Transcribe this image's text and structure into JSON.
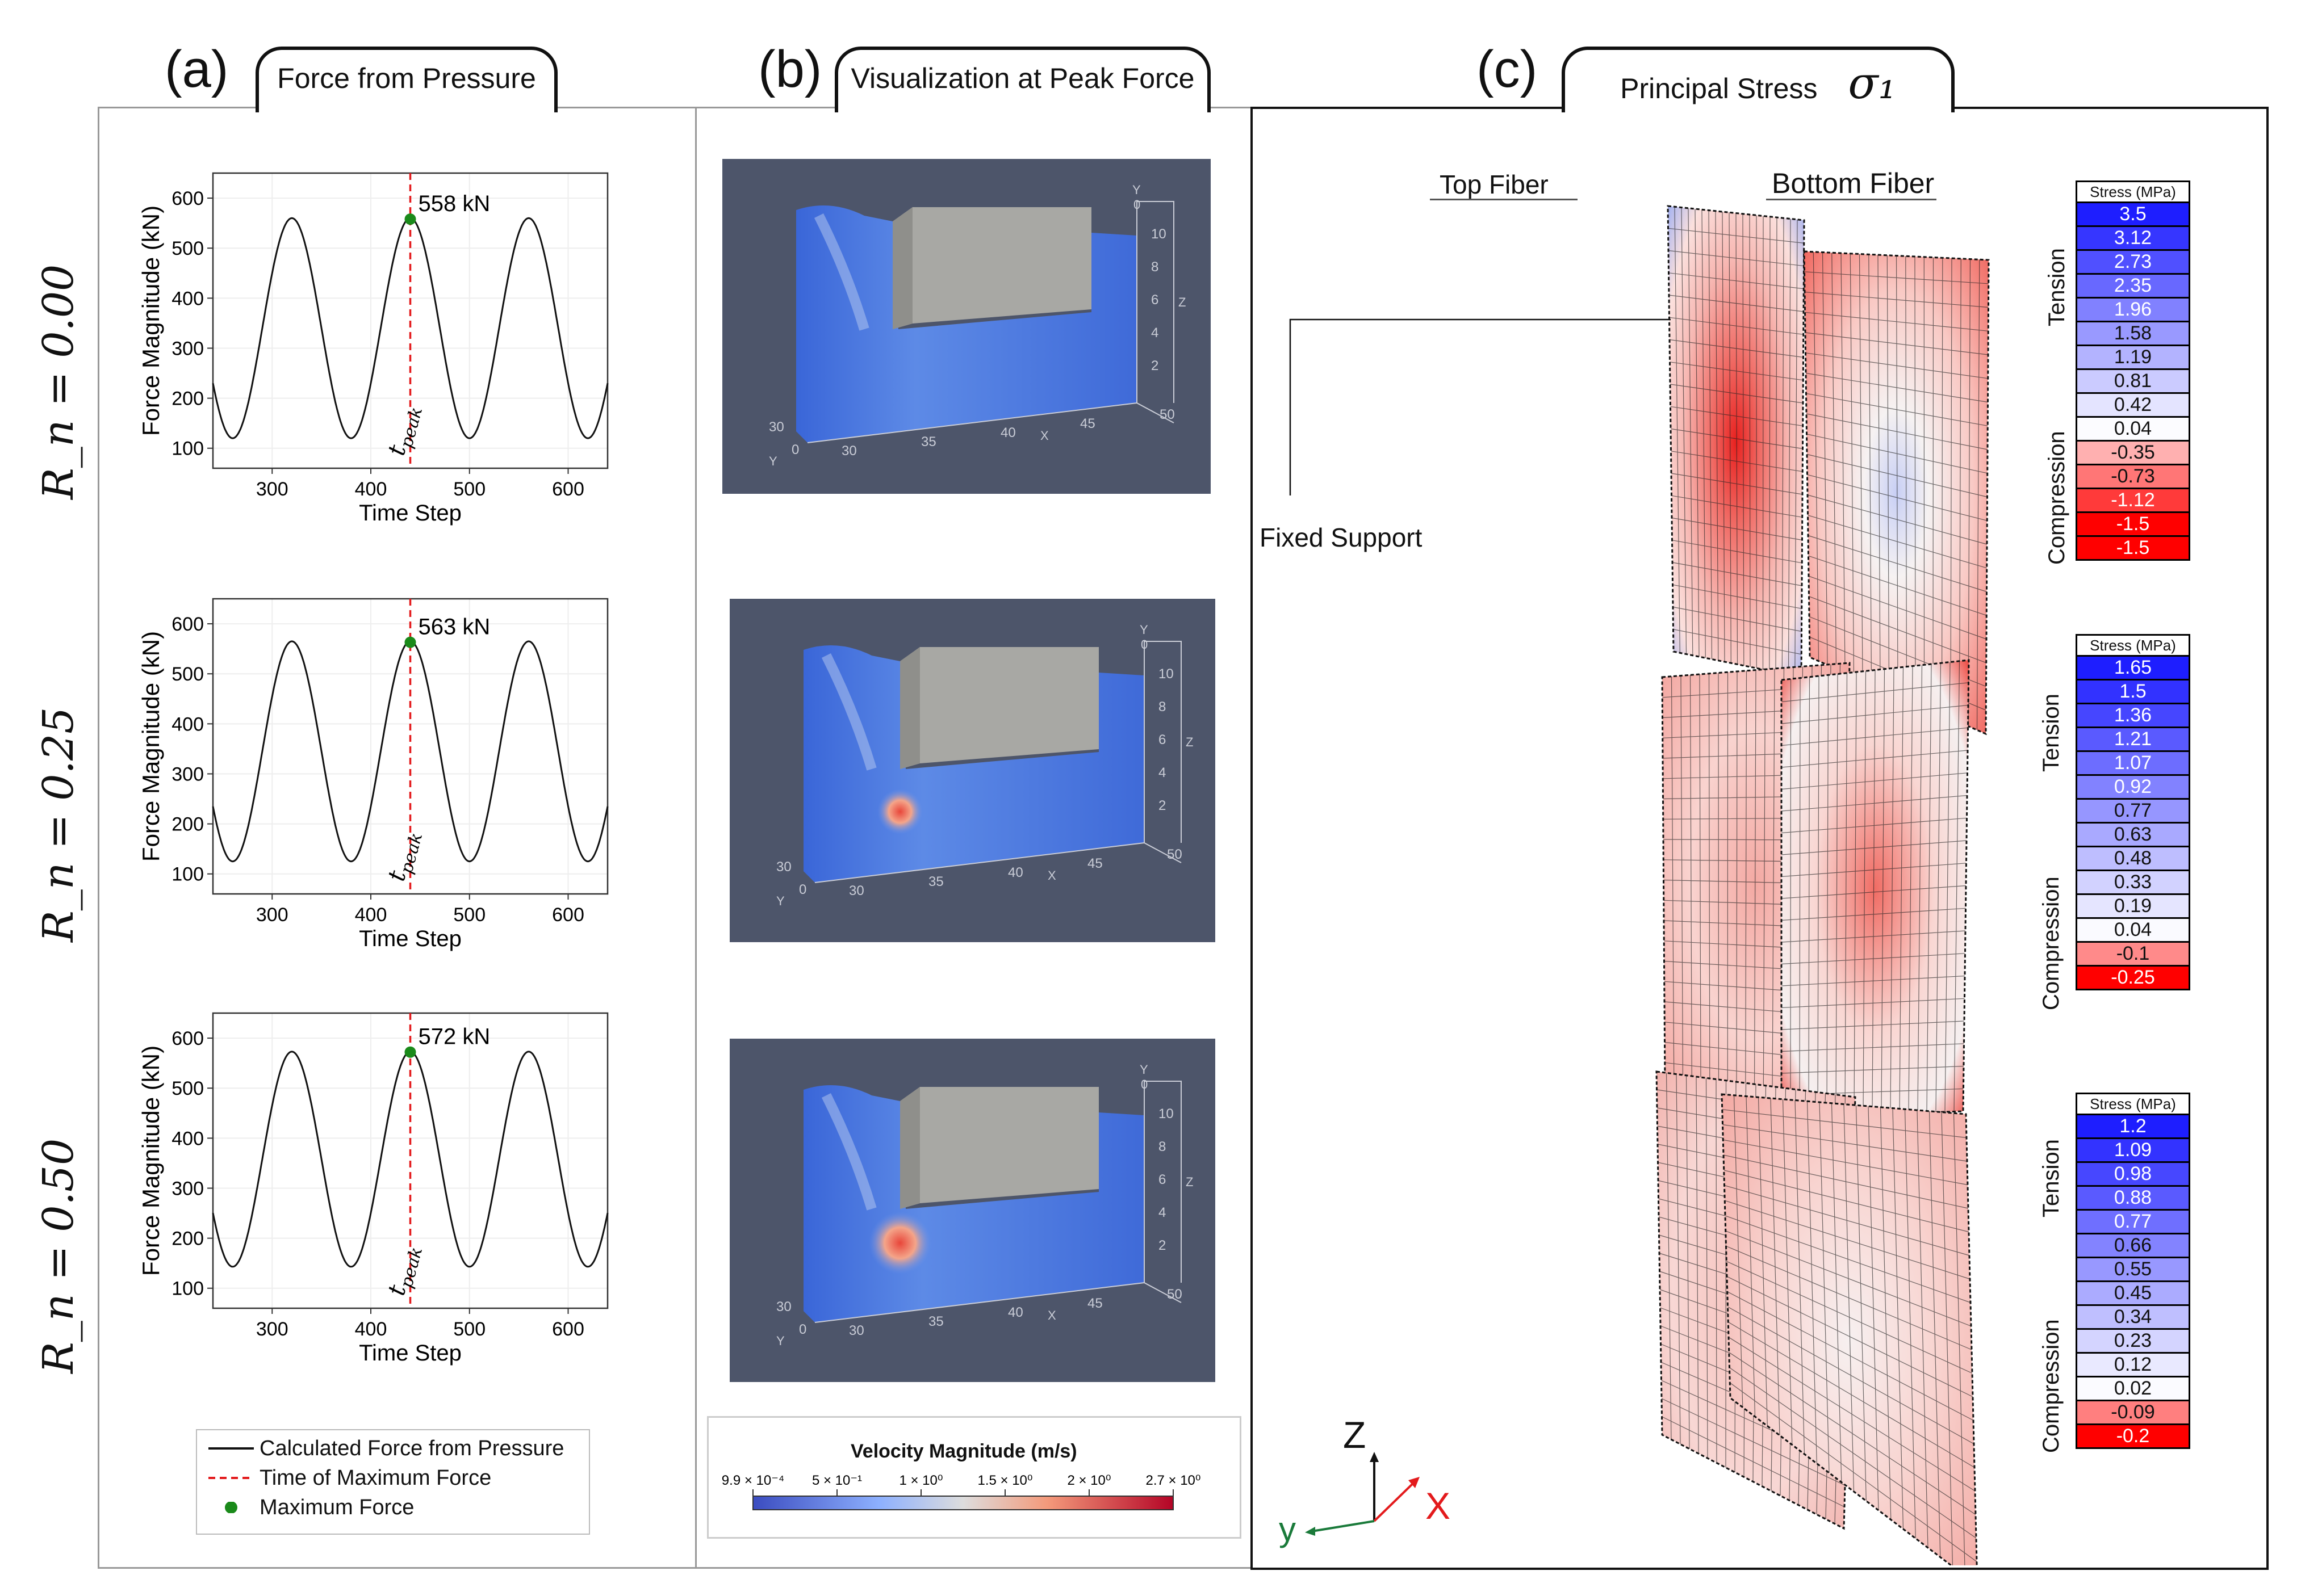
{
  "panels": {
    "a": {
      "letter": "(a)",
      "title": "Force from Pressure"
    },
    "b": {
      "letter": "(b)",
      "title": "Visualization at Peak Force"
    },
    "c": {
      "letter": "(c)",
      "title": "Principal Stress",
      "symbol": "σ₁"
    }
  },
  "row_labels": [
    "R_n = 0.00",
    "R_n = 0.25",
    "R_n = 0.50"
  ],
  "chart_data": [
    {
      "type": "line",
      "title": "",
      "xlabel": "Time Step",
      "ylabel": "Force Magnitude (kN)",
      "xlim": [
        240,
        640
      ],
      "ylim": [
        60,
        650
      ],
      "xticks": [
        300,
        400,
        500,
        600
      ],
      "yticks": [
        100,
        200,
        300,
        400,
        500,
        600
      ],
      "series": [
        {
          "name": "Calculated Force from Pressure",
          "mean": 340,
          "amp": 220,
          "period": 120,
          "peak_x": 440
        }
      ],
      "peak": {
        "x": 440,
        "y": 558,
        "label": "558 kN"
      },
      "vline_label": "t_peak"
    },
    {
      "type": "line",
      "title": "",
      "xlabel": "Time Step",
      "ylabel": "Force Magnitude (kN)",
      "xlim": [
        240,
        640
      ],
      "ylim": [
        60,
        650
      ],
      "xticks": [
        300,
        400,
        500,
        600
      ],
      "yticks": [
        100,
        200,
        300,
        400,
        500,
        600
      ],
      "series": [
        {
          "name": "Calculated Force from Pressure",
          "mean": 345,
          "amp": 220,
          "period": 120,
          "peak_x": 440
        }
      ],
      "peak": {
        "x": 440,
        "y": 563,
        "label": "563 kN"
      },
      "vline_label": "t_peak"
    },
    {
      "type": "line",
      "title": "",
      "xlabel": "Time Step",
      "ylabel": "Force Magnitude (kN)",
      "xlim": [
        240,
        640
      ],
      "ylim": [
        60,
        650
      ],
      "xticks": [
        300,
        400,
        500,
        600
      ],
      "yticks": [
        100,
        200,
        300,
        400,
        500,
        600
      ],
      "series": [
        {
          "name": "Calculated Force from Pressure",
          "mean": 358,
          "amp": 215,
          "period": 120,
          "peak_x": 440
        }
      ],
      "peak": {
        "x": 440,
        "y": 572,
        "label": "572 kN"
      },
      "vline_label": "t_peak"
    }
  ],
  "legend_a": {
    "items": [
      {
        "label": "Calculated Force from Pressure",
        "color": "#111111"
      },
      {
        "label": "Time of Maximum Force",
        "color": "#e31a1c"
      },
      {
        "label": "Maximum Force",
        "color": "#1a8a1a"
      }
    ]
  },
  "viz": {
    "axis_ticks_x": [
      "30",
      "35",
      "40",
      "45",
      "50"
    ],
    "axis_label_x": "X",
    "axis_ticks_y": [
      "30",
      "0"
    ],
    "axis_label_y": "Y",
    "axis_ticks_z": [
      "10",
      "8",
      "6",
      "4",
      "2"
    ],
    "axis_label_z": "Z",
    "axis_top": "0",
    "colorbar": {
      "title": "Velocity  Magnitude (m/s)",
      "ticks": [
        "9.9 × 10⁻⁴",
        "5 × 10⁻¹",
        "1 × 10⁰",
        "1.5 × 10⁰",
        "2 × 10⁰",
        "2.7 × 10⁰"
      ]
    }
  },
  "stress": {
    "col_titles": [
      "Top Fiber",
      "Bottom Fiber"
    ],
    "fixed_support": "Fixed Support",
    "header": "Stress (MPa)",
    "tension": "Tension",
    "compression": "Compression",
    "scales": [
      [
        "3.5",
        "3.12",
        "2.73",
        "2.35",
        "1.96",
        "1.58",
        "1.19",
        "0.81",
        "0.42",
        "0.04",
        "-0.35",
        "-0.73",
        "-1.12",
        "-1.5",
        "-1.5"
      ],
      [
        "1.65",
        "1.5",
        "1.36",
        "1.21",
        "1.07",
        "0.92",
        "0.77",
        "0.63",
        "0.48",
        "0.33",
        "0.19",
        "0.04",
        "-0.1",
        "-0.25"
      ],
      [
        "1.2",
        "1.09",
        "0.98",
        "0.88",
        "0.77",
        "0.66",
        "0.55",
        "0.45",
        "0.34",
        "0.23",
        "0.12",
        "0.02",
        "-0.09",
        "-0.2"
      ]
    ],
    "triad": {
      "z": "Z",
      "x": "X",
      "y": "y"
    }
  }
}
